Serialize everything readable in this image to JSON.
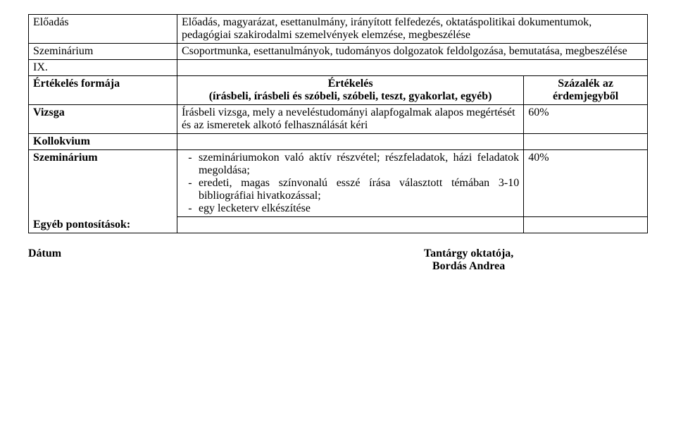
{
  "rows": {
    "eloadas": {
      "label": "Előadás",
      "desc": "Előadás, magyarázat, esettanulmány, irányított felfedezés, oktatáspolitikai dokumentumok, pedagógiai szakirodalmi szemelvények elemzése, megbeszélése"
    },
    "szeminarium1": {
      "label": "Szeminárium",
      "desc": "Csoportmunka, esettanulmányok, tudományos dolgozatok feldolgozása, bemutatása, megbeszélése"
    },
    "ix": {
      "label": "IX."
    },
    "ertekeles_formaja": {
      "label": "Értékelés formája",
      "mid_line1": "Értékelés",
      "mid_line2": "(írásbeli, írásbeli és szóbeli, szóbeli, teszt, gyakorlat, egyéb)",
      "right_line1": "Százalék az",
      "right_line2": "érdemjegyből"
    },
    "vizsga": {
      "label": "Vizsga",
      "desc": "Írásbeli vizsga, mely a neveléstudományi alapfogalmak alapos megértését és az ismeretek alkotó felhasználását kéri",
      "pct": "60%"
    },
    "kollokvium": {
      "label": "Kollokvium"
    },
    "szeminarium2": {
      "label": "Szeminárium",
      "items": [
        "szemináriumokon való aktív részvétel; részfeladatok, házi feladatok megoldása;",
        "eredeti, magas színvonalú esszé írása választott témában 3-10 bibliográfiai hivatkozással;",
        "egy lecketerv elkészítése"
      ],
      "pct": "40%"
    },
    "egyeb": {
      "label": "Egyéb pontosítások:"
    }
  },
  "footer": {
    "date": "Dátum",
    "instructor_line1": "Tantárgy oktatója,",
    "instructor_line2": "Bordás Andrea"
  },
  "dash": "-"
}
